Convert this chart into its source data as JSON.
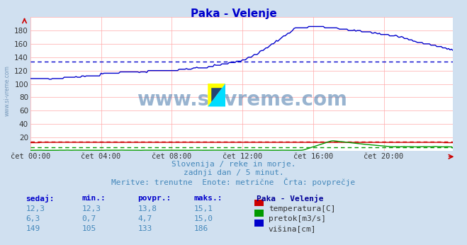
{
  "title": "Paka - Velenje",
  "title_color": "#0000cc",
  "background_color": "#d0e0f0",
  "plot_bg_color": "#ffffff",
  "grid_color_h": "#ffbbbb",
  "grid_color_v": "#ffbbbb",
  "xlabel_ticks": [
    "čet 00:00",
    "čet 04:00",
    "čet 08:00",
    "čet 12:00",
    "čet 16:00",
    "čet 20:00"
  ],
  "ylim": [
    0,
    200
  ],
  "n_points": 288,
  "avg_visina": 133,
  "avg_temperatura": 13.8,
  "avg_pretok": 4.7,
  "watermark": "www.si-vreme.com",
  "watermark_color": "#4477aa",
  "sidebar_text": "www.si-vreme.com",
  "sidebar_color": "#7799bb",
  "subtitle1": "Slovenija / reke in morje.",
  "subtitle2": "zadnji dan / 5 minut.",
  "subtitle3": "Meritve: trenutne  Enote: metrične  Črta: povprečje",
  "subtitle_color": "#4488bb",
  "legend_title": "Paka - Velenje",
  "legend_title_color": "#000099",
  "legend_items": [
    {
      "label": "temperatura[C]",
      "color": "#cc0000"
    },
    {
      "label": "pretok[m3/s]",
      "color": "#009900"
    },
    {
      "label": "višina[cm]",
      "color": "#0000cc"
    }
  ],
  "stats_headers": [
    "sedaj:",
    "min.:",
    "povpr.:",
    "maks.:"
  ],
  "stats_data": [
    [
      "12,3",
      "12,3",
      "13,8",
      "15,1"
    ],
    [
      "6,3",
      "0,7",
      "4,7",
      "15,0"
    ],
    [
      "149",
      "105",
      "133",
      "186"
    ]
  ],
  "color_temp": "#cc0000",
  "color_pretok": "#009900",
  "color_visina": "#0000cc"
}
